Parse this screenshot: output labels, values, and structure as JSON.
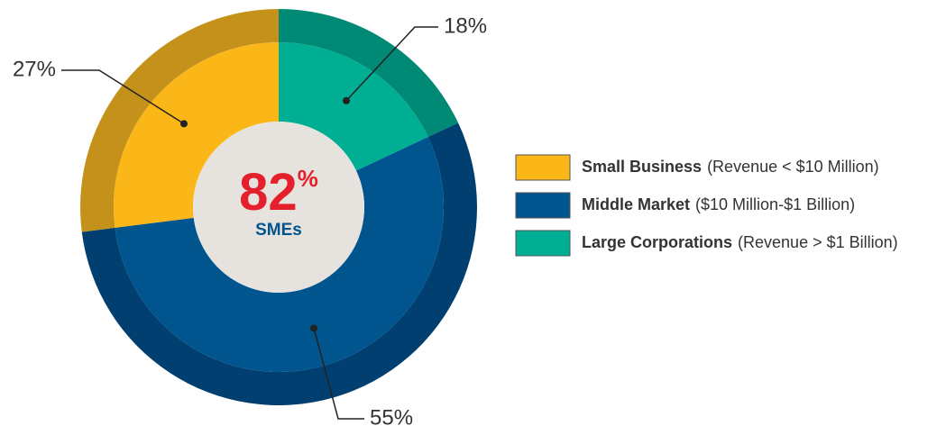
{
  "chart_data": {
    "type": "donut",
    "categories": [
      "Small Business",
      "Middle Market",
      "Large Corporations"
    ],
    "category_notes": [
      "(Revenue < $10 Million)",
      "($10 Million-$1 Billion)",
      "(Revenue > $1 Billion)"
    ],
    "values": [
      27,
      55,
      18
    ],
    "value_labels": [
      "27%",
      "55%",
      "18%"
    ],
    "colors": [
      "#fbb718",
      "#00558f",
      "#00ae94"
    ],
    "outer_colors": [
      "#c4921a",
      "#003f70",
      "#008a76"
    ],
    "center": {
      "value": "82",
      "unit": "%",
      "label": "SMEs"
    }
  }
}
